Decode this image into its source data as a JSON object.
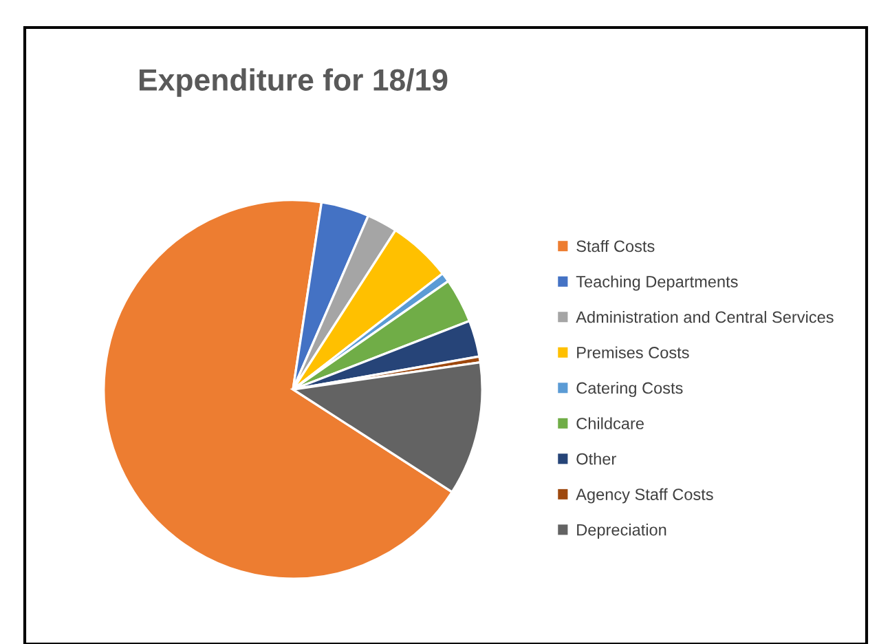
{
  "chart_data": {
    "type": "pie",
    "title": "Expenditure for 18/19",
    "categories": [
      "Staff Costs",
      "Teaching Departments",
      "Administration and Central Services",
      "Premises Costs",
      "Catering Costs",
      "Childcare",
      "Other",
      "Agency Staff Costs",
      "Depreciation"
    ],
    "values": [
      68.3,
      4.1,
      2.6,
      5.4,
      0.8,
      3.8,
      3.1,
      0.5,
      11.4
    ],
    "colors": [
      "#ed7d31",
      "#4472c4",
      "#a5a5a5",
      "#ffc000",
      "#5b9bd5",
      "#70ad47",
      "#264478",
      "#9e480e",
      "#636363"
    ],
    "legend": "right"
  }
}
